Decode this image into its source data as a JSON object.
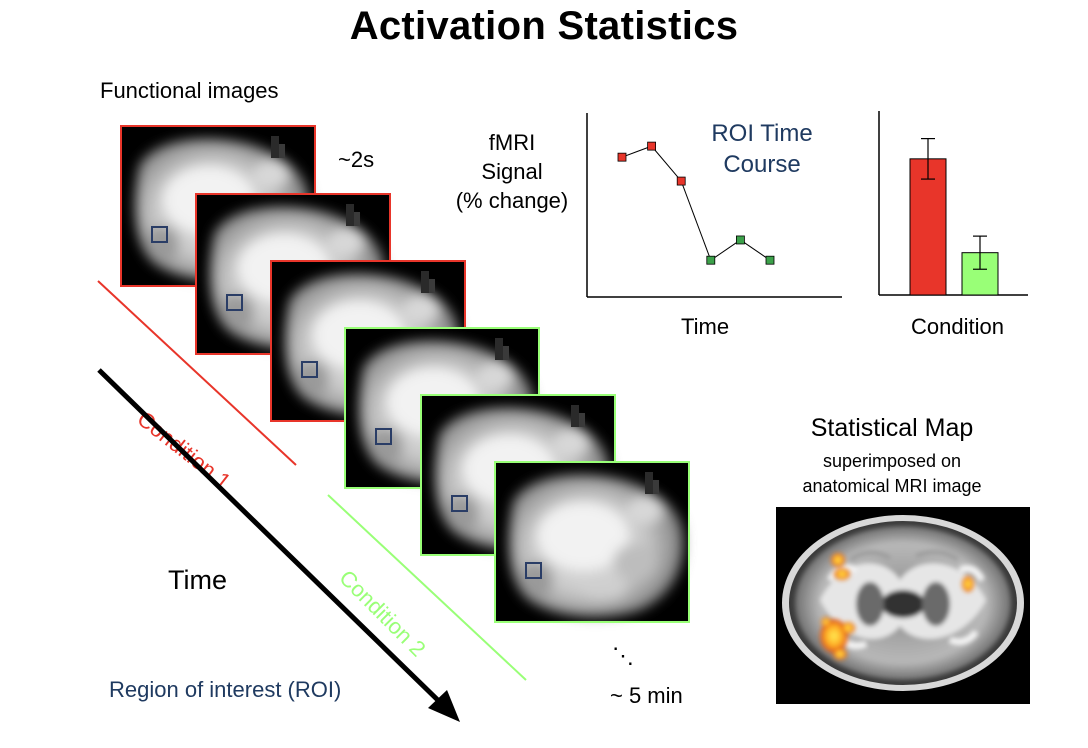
{
  "title": "Activation Statistics",
  "functional_images_label": "Functional images",
  "sampling_interval": "~2s",
  "time_label": "Time",
  "roi_label": "Region of interest (ROI)",
  "condition1_label": "Condition 1",
  "condition2_label": "Condition 2",
  "ellipsis": "⋱",
  "duration_label": "~ 5 min",
  "colors": {
    "condition1": "#e8352a",
    "condition2": "#99ff77",
    "roi_title": "#1f3a60",
    "roi_box": "#2a3d66"
  },
  "time_course": {
    "ylabel_line1": "fMRI",
    "ylabel_line2": "Signal",
    "ylabel_line3": "(% change)",
    "title_line1": "ROI Time",
    "title_line2": "Course",
    "xlabel": "Time",
    "chart_data": {
      "type": "line",
      "title": "ROI Time Course",
      "xlabel": "Time",
      "ylabel": "fMRI Signal (% change)",
      "ylim": [
        0,
        10
      ],
      "series": [
        {
          "name": "Condition 1",
          "color": "#e8352a",
          "x": [
            1,
            2,
            3
          ],
          "y": [
            7.6,
            8.2,
            6.3
          ]
        },
        {
          "name": "Condition 2",
          "color": "#3ca14a",
          "x": [
            4,
            5,
            6
          ],
          "y": [
            2.0,
            3.1,
            2.0
          ]
        }
      ]
    }
  },
  "condition_bar": {
    "xlabel": "Condition",
    "chart_data": {
      "type": "bar",
      "categories": [
        "Condition 1",
        "Condition 2"
      ],
      "values": [
        7.4,
        2.3
      ],
      "errors": [
        1.1,
        0.9
      ],
      "colors": [
        "#e8352a",
        "#99ff77"
      ],
      "xlabel": "Condition",
      "ylim": [
        0,
        10
      ]
    }
  },
  "stat_map": {
    "title": "Statistical Map",
    "subtitle_line1": "superimposed on",
    "subtitle_line2": "anatomical MRI image"
  }
}
